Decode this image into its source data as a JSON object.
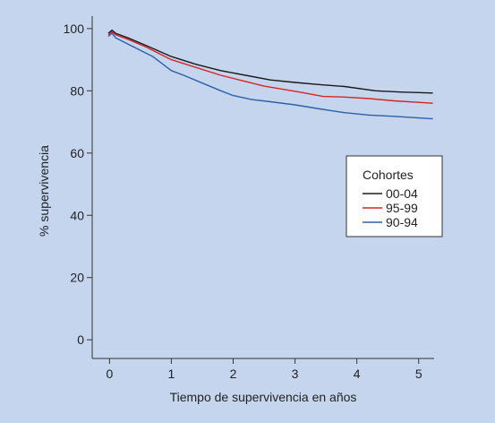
{
  "chart_data": {
    "type": "line",
    "title": "",
    "xlabel": "Tiempo de supervivencia en años",
    "ylabel": "% supervivencia",
    "xlim": [
      -0.28,
      5.25
    ],
    "ylim": [
      -6,
      104
    ],
    "xticks": [
      0,
      1,
      2,
      3,
      4,
      5
    ],
    "yticks": [
      0,
      20,
      40,
      60,
      80,
      100
    ],
    "grid": false,
    "legend": {
      "title": "Cohortes",
      "position": "right"
    },
    "series": [
      {
        "name": "00-04",
        "color": "#1a1a1a",
        "x": [
          -0.02,
          0.04,
          0.1,
          0.3,
          0.6,
          1.0,
          1.4,
          1.8,
          2.2,
          2.6,
          3.0,
          3.4,
          3.8,
          4.3,
          4.7,
          5.23
        ],
        "y": [
          98.5,
          99.5,
          98.5,
          97,
          94.5,
          91,
          88.5,
          86.5,
          85,
          83.5,
          82.7,
          82,
          81.4,
          80,
          79.6,
          79.3
        ]
      },
      {
        "name": "95-99",
        "color": "#d82525",
        "x": [
          -0.02,
          0.04,
          0.1,
          0.3,
          0.6,
          1.0,
          1.4,
          1.8,
          2.2,
          2.5,
          2.8,
          3.1,
          3.45,
          3.8,
          4.2,
          4.6,
          5.23
        ],
        "y": [
          98,
          99,
          98,
          96.5,
          94,
          90,
          87.5,
          85,
          83,
          81.5,
          80.5,
          79.5,
          78.2,
          78,
          77.5,
          76.8,
          76
        ]
      },
      {
        "name": "90-94",
        "color": "#2a62a8",
        "x": [
          -0.02,
          0.04,
          0.1,
          0.3,
          0.7,
          1.0,
          1.2,
          1.5,
          1.8,
          2.0,
          2.3,
          2.6,
          3.0,
          3.4,
          3.8,
          4.2,
          4.6,
          5.23
        ],
        "y": [
          97.5,
          98.5,
          97,
          95,
          91,
          86.5,
          85,
          82.5,
          80,
          78.5,
          77.2,
          76.5,
          75.5,
          74.2,
          73,
          72.2,
          71.8,
          71
        ]
      }
    ]
  }
}
